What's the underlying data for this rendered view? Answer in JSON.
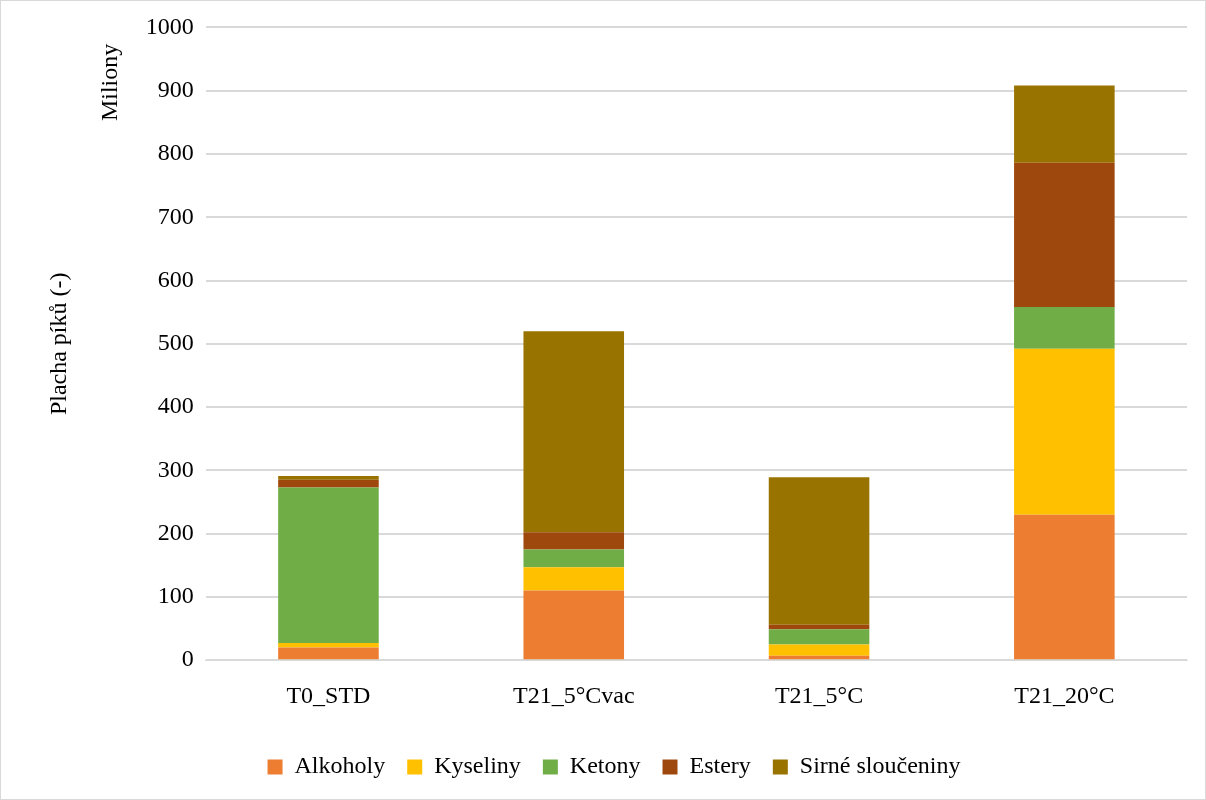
{
  "chart_data": {
    "type": "bar",
    "stacked": true,
    "ylabel": "Placha píků (-)",
    "annotations": [
      "Miliony"
    ],
    "categories": [
      "T0_STD",
      "T21_5°Cvac",
      "T21_5°C",
      "T21_20°C"
    ],
    "series": [
      {
        "name": "Alkoholy",
        "color": "#ed7d31",
        "values": [
          20,
          110,
          7,
          230
        ]
      },
      {
        "name": "Kyseliny",
        "color": "#ffc000",
        "values": [
          7,
          37,
          18,
          262
        ]
      },
      {
        "name": "Ketony",
        "color": "#70ad47",
        "values": [
          246,
          28,
          24,
          66
        ]
      },
      {
        "name": "Estery",
        "color": "#9e480e",
        "values": [
          12,
          27,
          7,
          228
        ]
      },
      {
        "name": "Sirné sloučeniny",
        "color": "#997300",
        "values": [
          6,
          318,
          233,
          122
        ]
      }
    ],
    "ylim": [
      0,
      1000
    ],
    "yticks": [
      0,
      100,
      200,
      300,
      400,
      500,
      600,
      700,
      800,
      900,
      1000
    ],
    "grid": "y",
    "legend": "bottom"
  }
}
